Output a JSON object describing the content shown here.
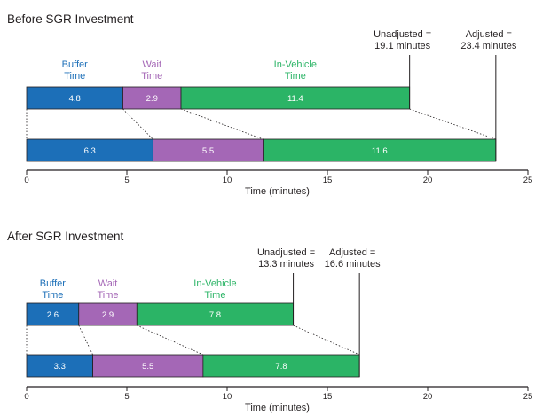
{
  "colors": {
    "buffer": "#1c6fb8",
    "wait": "#a467b6",
    "invehicle": "#2bb466",
    "buffer_text": "#1c6fb8",
    "wait_text": "#a467b6",
    "invehicle_text": "#2bb466",
    "ink": "#231f20"
  },
  "chart_data": [
    {
      "type": "bar",
      "orientation": "horizontal",
      "stacked": true,
      "title": "Before SGR Investment",
      "categories": [
        "Unadjusted",
        "Adjusted"
      ],
      "series": [
        {
          "name": "Buffer Time",
          "values": [
            4.8,
            6.3
          ]
        },
        {
          "name": "Wait Time",
          "values": [
            2.9,
            5.5
          ]
        },
        {
          "name": "In-Vehicle Time",
          "values": [
            11.4,
            11.6
          ]
        }
      ],
      "totals": [
        {
          "label": "Unadjusted =",
          "value": "19.1 minutes",
          "x": 19.1
        },
        {
          "label": "Adjusted =",
          "value": "23.4 minutes",
          "x": 23.4
        }
      ],
      "xlabel": "Time (minutes)",
      "xlim": [
        0,
        25
      ],
      "xticks": [
        0,
        5,
        10,
        15,
        20,
        25
      ]
    },
    {
      "type": "bar",
      "orientation": "horizontal",
      "stacked": true,
      "title": "After SGR Investment",
      "categories": [
        "Unadjusted",
        "Adjusted"
      ],
      "series": [
        {
          "name": "Buffer Time",
          "values": [
            2.6,
            3.3
          ]
        },
        {
          "name": "Wait Time",
          "values": [
            2.9,
            5.5
          ]
        },
        {
          "name": "In-Vehicle Time",
          "values": [
            7.8,
            7.8
          ]
        }
      ],
      "totals": [
        {
          "label": "Unadjusted =",
          "value": "13.3 minutes",
          "x": 13.3
        },
        {
          "label": "Adjusted =",
          "value": "16.6 minutes",
          "x": 16.6
        }
      ],
      "xlabel": "Time (minutes)",
      "xlim": [
        0,
        25
      ],
      "xticks": [
        0,
        5,
        10,
        15,
        20,
        25
      ]
    }
  ]
}
